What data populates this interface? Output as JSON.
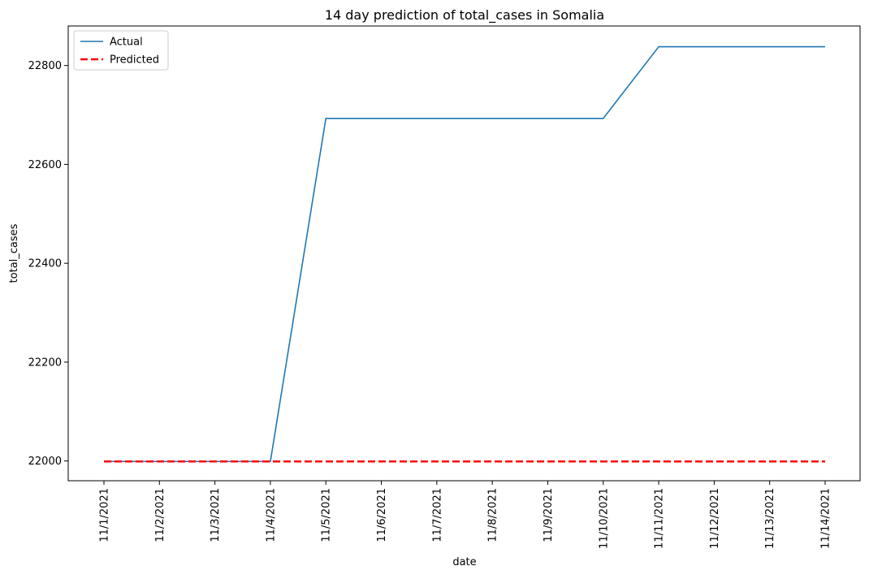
{
  "chart_data": {
    "type": "line",
    "title": "14 day prediction of total_cases in Somalia",
    "xlabel": "date",
    "ylabel": "total_cases",
    "categories": [
      "11/1/2021",
      "11/2/2021",
      "11/3/2021",
      "11/4/2021",
      "11/5/2021",
      "11/6/2021",
      "11/7/2021",
      "11/8/2021",
      "11/9/2021",
      "11/10/2021",
      "11/11/2021",
      "11/12/2021",
      "11/13/2021",
      "11/14/2021"
    ],
    "y_ticks": [
      22000,
      22200,
      22400,
      22600,
      22800
    ],
    "ylim": [
      21960,
      22880
    ],
    "grid": false,
    "legend_position": "top-left",
    "series": [
      {
        "name": "Actual",
        "color": "#1f77b4",
        "style": "solid",
        "values": [
          21999,
          21999,
          21999,
          21999,
          22693,
          22693,
          22693,
          22693,
          22693,
          22693,
          22838,
          22838,
          22838,
          22838
        ]
      },
      {
        "name": "Predicted",
        "color": "#ff0000",
        "style": "dashed",
        "values": [
          21999,
          21999,
          21999,
          21999,
          21999,
          21999,
          21999,
          21999,
          21999,
          21999,
          21999,
          21999,
          21999,
          21999
        ]
      }
    ]
  }
}
